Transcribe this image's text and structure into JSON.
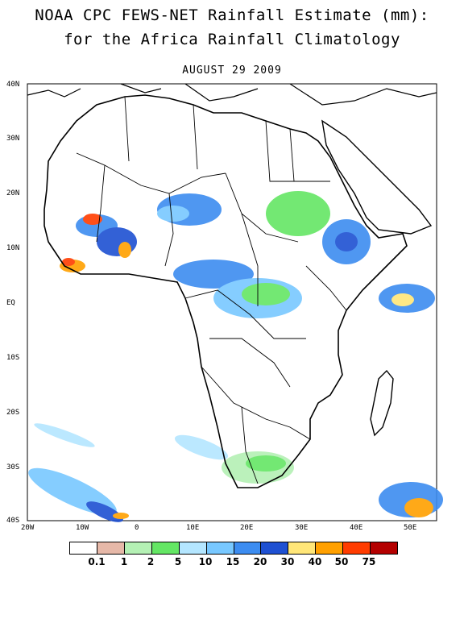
{
  "header": {
    "title_line1": "NOAA CPC FEWS-NET Rainfall Estimate (mm):",
    "title_line2": "for the Africa Rainfall Climatology",
    "date": "AUGUST 29 2009"
  },
  "axes": {
    "lat_labels": [
      "40N",
      "30N",
      "20N",
      "10N",
      "EQ",
      "10S",
      "20S",
      "30S",
      "40S"
    ],
    "lon_labels": [
      "20W",
      "10W",
      "0",
      "10E",
      "20E",
      "30E",
      "40E",
      "50E"
    ]
  },
  "legend": {
    "colors": [
      "#ffffff",
      "#e6b8a8",
      "#b4f0b4",
      "#64e664",
      "#b4e6ff",
      "#78c8ff",
      "#3c8cf0",
      "#1e50d2",
      "#ffe678",
      "#ffa000",
      "#ff3c00",
      "#b40000"
    ],
    "labels": [
      "0.1",
      "1",
      "2",
      "5",
      "10",
      "15",
      "20",
      "30",
      "40",
      "50",
      "75"
    ]
  },
  "map": {
    "region": "Africa",
    "extent": {
      "lon": [
        -20,
        55
      ],
      "lat": [
        -40,
        40
      ]
    },
    "frame_color": "#000000",
    "boundary_color": "#000000"
  }
}
